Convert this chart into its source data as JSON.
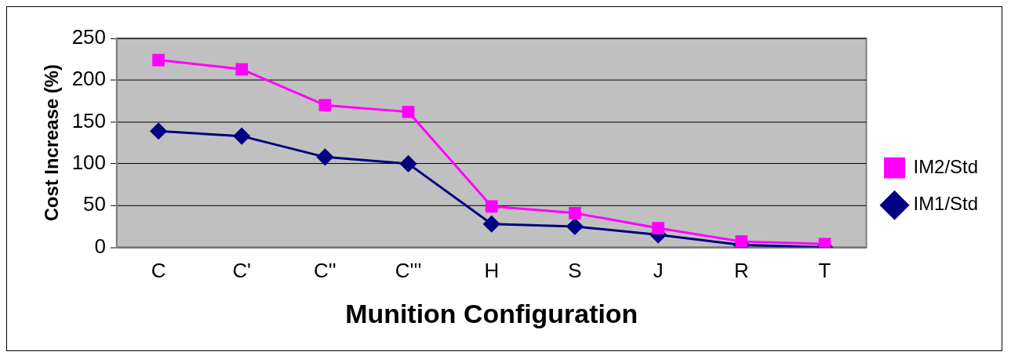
{
  "chart_data": {
    "type": "line",
    "xlabel": "Munition Configuration",
    "ylabel": "Cost Increase (%)",
    "categories": [
      "C",
      "C'",
      "C''",
      "C'''",
      "H",
      "S",
      "J",
      "R",
      "T"
    ],
    "series": [
      {
        "name": "IM1/Std",
        "color": "#000080",
        "marker": "diamond",
        "values": [
          139,
          133,
          108,
          100,
          28,
          25,
          15,
          3,
          0
        ]
      },
      {
        "name": "IM2/Std",
        "color": "#ff00ff",
        "marker": "square",
        "values": [
          224,
          213,
          170,
          162,
          49,
          41,
          23,
          7,
          4
        ]
      }
    ],
    "ylim": [
      0,
      250
    ],
    "yticks": [
      0,
      50,
      100,
      150,
      200,
      250
    ],
    "grid": "y",
    "legend": "right"
  }
}
